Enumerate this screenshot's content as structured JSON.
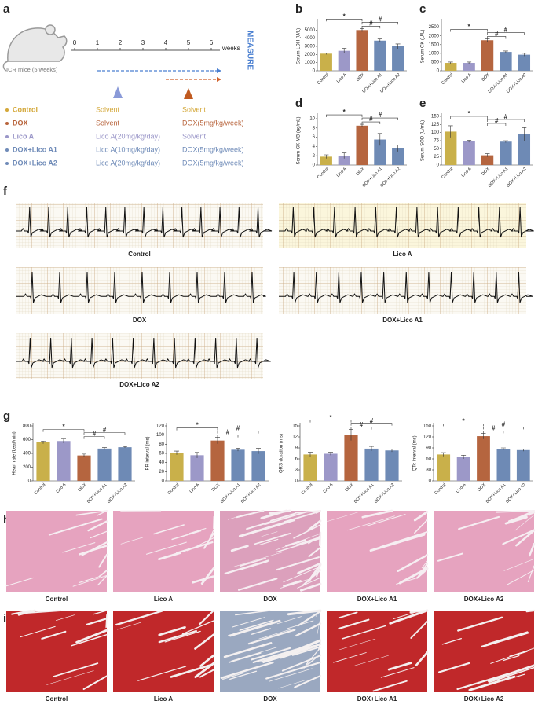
{
  "panel_labels": {
    "a": "a",
    "f": "f",
    "g": "g",
    "h": "h",
    "i": "i"
  },
  "timeline": {
    "ticks": [
      0,
      1,
      2,
      3,
      4,
      5,
      6
    ],
    "unit": "weeks",
    "end_label": "MEASURE",
    "mouse_label": "ICR mice (5 weeks)"
  },
  "groups": [
    {
      "name": "Control",
      "color": "#d4a83a",
      "treatment_1": "Solvent",
      "treatment_2": "Solvent"
    },
    {
      "name": "DOX",
      "color": "#b8643c",
      "treatment_1": "Solvent",
      "treatment_2": "DOX(5mg/kg/week)"
    },
    {
      "name": "Lico A",
      "color": "#9a96c8",
      "treatment_1": "Lico A(20mg/kg/day)",
      "treatment_2": "Solvent"
    },
    {
      "name": "DOX+Lico A1",
      "color": "#6f8bb8",
      "treatment_1": "Lico A(10mg/kg/day)",
      "treatment_2": "DOX(5mg/kg/week)"
    },
    {
      "name": "DOX+Lico A2",
      "color": "#6f8bb8",
      "treatment_1": "Lico A(20mg/kg/day)",
      "treatment_2": "DOX(5mg/kg/week)"
    }
  ],
  "ecg": {
    "labels": [
      "Control",
      "Lico A",
      "DOX",
      "DOX+Lico A1",
      "DOX+Lico A2"
    ]
  },
  "histology_h": {
    "labels": [
      "Control",
      "Lico A",
      "DOX",
      "DOX+Lico A1",
      "DOX+Lico A2"
    ]
  },
  "histology_i": {
    "labels": [
      "Control",
      "Lico A",
      "DOX",
      "DOX+Lico A1",
      "DOX+Lico A2"
    ]
  },
  "chart_data": [
    {
      "type": "bar",
      "panel": "b",
      "y_label": "Serum LDH (U/L)",
      "categories": [
        "Control",
        "Lico A",
        "DOX",
        "DOX+Lico A1",
        "DOX+Lico A2"
      ],
      "values": [
        2100,
        2450,
        5000,
        3700,
        3000
      ],
      "errors": [
        100,
        300,
        200,
        200,
        300
      ],
      "colors": [
        "#c9b04a",
        "#9c98c8",
        "#b5653f",
        "#6e8ab5",
        "#6e8ab5"
      ],
      "ylim": [
        0,
        6000
      ],
      "yticks": [
        0,
        1000,
        2000,
        3000,
        4000,
        5000
      ],
      "significance": [
        "*",
        "#",
        "#"
      ]
    },
    {
      "type": "bar",
      "panel": "c",
      "y_label": "Serum CK (U/L)",
      "categories": [
        "Control",
        "Lico A",
        "DOX",
        "DOX+Lico A1",
        "DOX+Lico A2"
      ],
      "values": [
        450,
        450,
        1750,
        1080,
        920
      ],
      "errors": [
        50,
        50,
        80,
        50,
        80
      ],
      "colors": [
        "#c9b04a",
        "#9c98c8",
        "#b5653f",
        "#6e8ab5",
        "#6e8ab5"
      ],
      "ylim": [
        0,
        2800
      ],
      "yticks": [
        0,
        500,
        1000,
        1500,
        2000,
        2500
      ],
      "significance": [
        "*",
        "#",
        "#"
      ]
    },
    {
      "type": "bar",
      "panel": "d",
      "y_label": "Serum CK-MB (ng/mL)",
      "categories": [
        "Control",
        "Lico A",
        "DOX",
        "DOX+Lico A1",
        "DOX+Lico A2"
      ],
      "values": [
        1.8,
        2.0,
        8.5,
        5.5,
        3.6
      ],
      "errors": [
        0.4,
        0.6,
        0.3,
        1.3,
        0.7
      ],
      "colors": [
        "#c9b04a",
        "#9c98c8",
        "#b5653f",
        "#6e8ab5",
        "#6e8ab5"
      ],
      "ylim": [
        0,
        10.5
      ],
      "yticks": [
        0,
        2,
        4,
        6,
        8,
        10
      ],
      "significance": [
        "*",
        "#",
        "#"
      ]
    },
    {
      "type": "bar",
      "panel": "e",
      "y_label": "Serum SOD (U/mL)",
      "categories": [
        "Control",
        "Lico A",
        "DOX",
        "DOX+Lico A1",
        "DOX+Lico A2"
      ],
      "values": [
        103,
        73,
        30,
        72,
        95
      ],
      "errors": [
        18,
        3,
        5,
        3,
        20
      ],
      "colors": [
        "#c9b04a",
        "#9c98c8",
        "#b5653f",
        "#6e8ab5",
        "#6e8ab5"
      ],
      "ylim": [
        0,
        150
      ],
      "yticks": [
        0,
        25,
        50,
        75,
        100,
        125,
        150
      ],
      "significance": [
        "*",
        "#",
        "#"
      ]
    },
    {
      "type": "bar",
      "y_label": "Heart rate (beat/min)",
      "categories": [
        "Control",
        "Lico A",
        "DOX",
        "DOX+Lico A1",
        "DOX+Lico A2"
      ],
      "values": [
        560,
        580,
        370,
        470,
        490
      ],
      "errors": [
        20,
        30,
        20,
        15,
        10
      ],
      "colors": [
        "#c9b04a",
        "#9c98c8",
        "#b5653f",
        "#6e8ab5",
        "#6e8ab5"
      ],
      "ylim": [
        0,
        800
      ],
      "yticks": [
        0,
        200,
        400,
        600,
        800
      ],
      "significance": [
        "*",
        "#",
        "#"
      ]
    },
    {
      "type": "bar",
      "y_label": "PR interval (ms)",
      "categories": [
        "Control",
        "Lico A",
        "DOX",
        "DOX+Lico A1",
        "DOX+Lico A2"
      ],
      "values": [
        61,
        56,
        88,
        68,
        65
      ],
      "errors": [
        4,
        6,
        7,
        3,
        6
      ],
      "colors": [
        "#c9b04a",
        "#9c98c8",
        "#b5653f",
        "#6e8ab5",
        "#6e8ab5"
      ],
      "ylim": [
        0,
        120
      ],
      "yticks": [
        0,
        20,
        40,
        60,
        80,
        100,
        120
      ],
      "significance": [
        "*",
        "#",
        "#"
      ]
    },
    {
      "type": "bar",
      "y_label": "QRS duration (ms)",
      "categories": [
        "Control",
        "Lico A",
        "DOX",
        "DOX+Lico A1",
        "DOX+Lico A2"
      ],
      "values": [
        7.2,
        7.4,
        12.5,
        8.8,
        8.3
      ],
      "errors": [
        0.6,
        0.4,
        1.5,
        0.6,
        0.4
      ],
      "colors": [
        "#c9b04a",
        "#9c98c8",
        "#b5653f",
        "#6e8ab5",
        "#6e8ab5"
      ],
      "ylim": [
        0,
        15
      ],
      "yticks": [
        0,
        3,
        6,
        9,
        12,
        15
      ],
      "significance": [
        "*",
        "#",
        "#"
      ]
    },
    {
      "type": "bar",
      "y_label": "QTc interval (ms)",
      "categories": [
        "Control",
        "Lico A",
        "DOX",
        "DOX+Lico A1",
        "DOX+Lico A2"
      ],
      "values": [
        72,
        65,
        122,
        87,
        84
      ],
      "errors": [
        5,
        5,
        8,
        3,
        3
      ],
      "colors": [
        "#c9b04a",
        "#9c98c8",
        "#b5653f",
        "#6e8ab5",
        "#6e8ab5"
      ],
      "ylim": [
        0,
        150
      ],
      "yticks": [
        0,
        30,
        60,
        90,
        120,
        150
      ],
      "significance": [
        "*",
        "#",
        "#"
      ]
    }
  ]
}
